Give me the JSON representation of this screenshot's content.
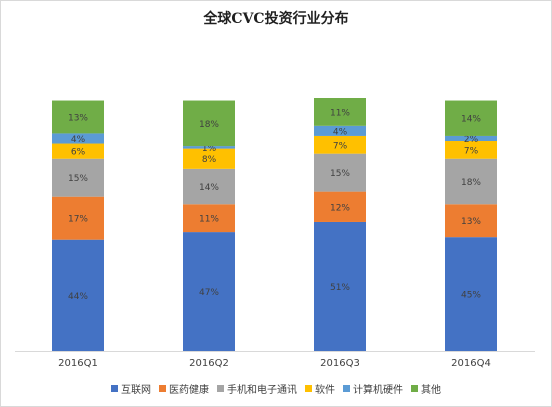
{
  "chart_data": {
    "type": "bar",
    "stacked": true,
    "title": "全球CVC投资行业分布",
    "categories": [
      "2016Q1",
      "2016Q2",
      "2016Q3",
      "2016Q4"
    ],
    "series": [
      {
        "name": "互联网",
        "color": "#4472c4",
        "values": [
          44,
          47,
          51,
          45
        ],
        "labels": [
          "44%",
          "47%",
          "51%",
          "45%"
        ]
      },
      {
        "name": "医药健康",
        "color": "#ed7d31",
        "values": [
          17,
          11,
          12,
          13
        ],
        "labels": [
          "17%",
          "11%",
          "12%",
          "13%"
        ]
      },
      {
        "name": "手机和电子通讯",
        "color": "#a5a5a5",
        "values": [
          15,
          14,
          15,
          18
        ],
        "labels": [
          "15%",
          "14%",
          "15%",
          "18%"
        ]
      },
      {
        "name": "软件",
        "color": "#ffc000",
        "values": [
          6,
          8,
          7,
          7
        ],
        "labels": [
          "6%",
          "8%",
          "7%",
          "7%"
        ]
      },
      {
        "name": "计算机硬件",
        "color": "#5b9bd5",
        "values": [
          4,
          1,
          4,
          2
        ],
        "labels": [
          "4%",
          "1%",
          "4%",
          "2%"
        ]
      },
      {
        "name": "其他",
        "color": "#70ad47",
        "values": [
          13,
          18,
          11,
          14
        ],
        "labels": [
          "13%",
          "18%",
          "11%",
          "14%"
        ]
      }
    ],
    "legend_position": "bottom",
    "grid": false
  }
}
